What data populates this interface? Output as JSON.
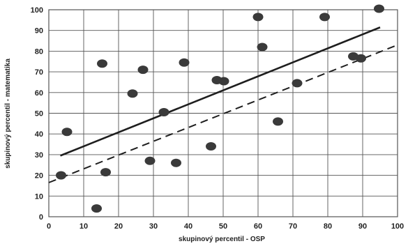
{
  "chart_data": {
    "type": "scatter",
    "title": "",
    "xlabel": "skupinový percentil - OSP",
    "ylabel": "skupinový percentil - matematika",
    "xlim": [
      0,
      100
    ],
    "ylim": [
      0,
      100
    ],
    "xticks": [
      0,
      10,
      20,
      30,
      40,
      50,
      60,
      70,
      80,
      90,
      100
    ],
    "yticks": [
      0,
      10,
      20,
      30,
      40,
      50,
      60,
      70,
      80,
      90,
      100
    ],
    "grid": true,
    "legend": "none",
    "series": [
      {
        "points": [
          {
            "x": 3.5,
            "y": 20
          },
          {
            "x": 5.2,
            "y": 41
          },
          {
            "x": 13.7,
            "y": 4
          },
          {
            "x": 15.3,
            "y": 74
          },
          {
            "x": 16.3,
            "y": 21.5
          },
          {
            "x": 24.0,
            "y": 59.5
          },
          {
            "x": 27.0,
            "y": 71
          },
          {
            "x": 29.0,
            "y": 27
          },
          {
            "x": 33.0,
            "y": 50.5
          },
          {
            "x": 36.5,
            "y": 26
          },
          {
            "x": 38.8,
            "y": 74.5
          },
          {
            "x": 46.5,
            "y": 34
          },
          {
            "x": 48.2,
            "y": 66
          },
          {
            "x": 50.2,
            "y": 65.5
          },
          {
            "x": 60.0,
            "y": 96.5
          },
          {
            "x": 61.2,
            "y": 82
          },
          {
            "x": 65.7,
            "y": 46
          },
          {
            "x": 71.2,
            "y": 64.5
          },
          {
            "x": 79.1,
            "y": 96.5
          },
          {
            "x": 87.3,
            "y": 77.5
          },
          {
            "x": 89.5,
            "y": 76.5
          },
          {
            "x": 94.7,
            "y": 100.5
          }
        ]
      }
    ],
    "lines": [
      {
        "style": "solid",
        "from": [
          3.3,
          29.5
        ],
        "to": [
          95,
          91.5
        ]
      },
      {
        "style": "dashed",
        "from": [
          0,
          16.5
        ],
        "to": [
          100,
          83
        ]
      }
    ]
  },
  "colors": {
    "grid": "#555555",
    "points": "#3a3a3a",
    "lines": "#1e1e1e"
  }
}
